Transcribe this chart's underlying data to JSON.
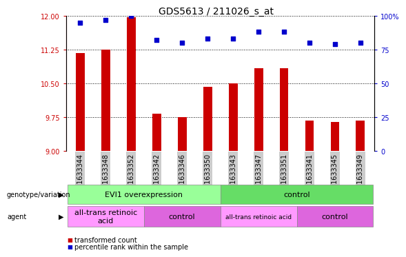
{
  "title": "GDS5613 / 211026_s_at",
  "samples": [
    "GSM1633344",
    "GSM1633348",
    "GSM1633352",
    "GSM1633342",
    "GSM1633346",
    "GSM1633350",
    "GSM1633343",
    "GSM1633347",
    "GSM1633351",
    "GSM1633341",
    "GSM1633345",
    "GSM1633349"
  ],
  "bar_data": [
    11.17,
    11.25,
    11.97,
    9.83,
    9.75,
    10.42,
    10.5,
    10.83,
    10.83,
    9.68,
    9.65,
    9.68
  ],
  "percentile_values": [
    95,
    97,
    100,
    82,
    80,
    83,
    83,
    88,
    88,
    80,
    79,
    80
  ],
  "bar_color": "#cc0000",
  "dot_color": "#0000cc",
  "ylim_left": [
    9.0,
    12.0
  ],
  "ylim_right": [
    0,
    100
  ],
  "yticks_left": [
    9.0,
    9.75,
    10.5,
    11.25,
    12.0
  ],
  "yticks_right": [
    0,
    25,
    50,
    75,
    100
  ],
  "bar_width": 0.35,
  "genotype_groups": [
    {
      "label": "EVI1 overexpression",
      "start": 0,
      "end": 6,
      "color": "#99ff99"
    },
    {
      "label": "control",
      "start": 6,
      "end": 12,
      "color": "#66dd66"
    }
  ],
  "agent_groups": [
    {
      "label": "all-trans retinoic\nacid",
      "start": 0,
      "end": 3,
      "color": "#ff99ff"
    },
    {
      "label": "control",
      "start": 3,
      "end": 6,
      "color": "#dd66dd"
    },
    {
      "label": "all-trans retinoic acid",
      "start": 6,
      "end": 9,
      "color": "#ff99ff"
    },
    {
      "label": "control",
      "start": 9,
      "end": 12,
      "color": "#dd66dd"
    }
  ],
  "title_fontsize": 10,
  "tick_fontsize": 7,
  "label_fontsize": 8,
  "sample_bg_color": "#cccccc"
}
